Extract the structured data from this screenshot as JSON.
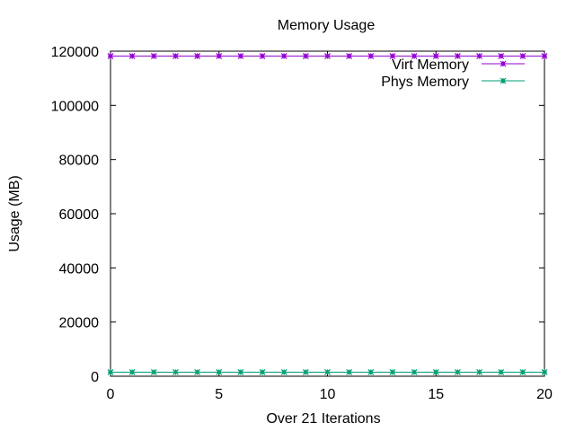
{
  "chart_data": {
    "type": "line",
    "title": "Memory Usage",
    "xlabel": "Over 21 Iterations",
    "ylabel": "Usage (MB)",
    "xlim": [
      0,
      20
    ],
    "ylim": [
      0,
      120000
    ],
    "x_ticks": [
      0,
      5,
      10,
      15,
      20
    ],
    "y_ticks": [
      0,
      20000,
      40000,
      60000,
      80000,
      100000,
      120000
    ],
    "grid": false,
    "legend_position": "top-right",
    "x": [
      0,
      1,
      2,
      3,
      4,
      5,
      6,
      7,
      8,
      9,
      10,
      11,
      12,
      13,
      14,
      15,
      16,
      17,
      18,
      19,
      20
    ],
    "series": [
      {
        "name": "Virt Memory",
        "color": "#9400d3",
        "values": [
          118200,
          118200,
          118200,
          118200,
          118200,
          118200,
          118200,
          118200,
          118200,
          118200,
          118200,
          118200,
          118200,
          118200,
          118200,
          118200,
          118200,
          118200,
          118200,
          118200,
          118200
        ]
      },
      {
        "name": "Phys Memory",
        "color": "#009e73",
        "values": [
          1500,
          1500,
          1500,
          1500,
          1500,
          1500,
          1500,
          1500,
          1500,
          1500,
          1500,
          1500,
          1500,
          1500,
          1500,
          1500,
          1500,
          1500,
          1500,
          1500,
          1500
        ]
      }
    ]
  }
}
